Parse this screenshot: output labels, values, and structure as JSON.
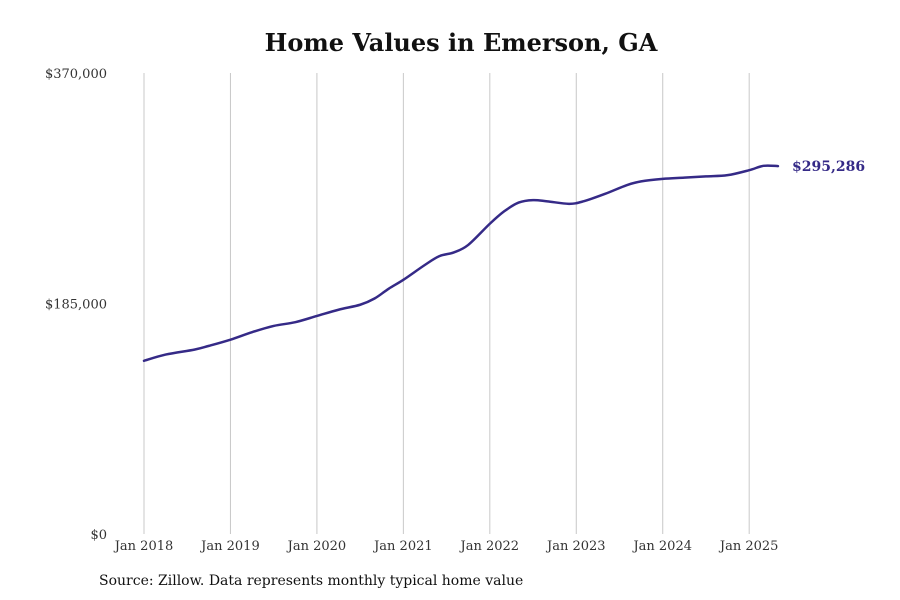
{
  "chart_data": {
    "type": "line",
    "title": "Home Values in Emerson, GA",
    "source": "Source: Zillow. Data represents monthly typical home value",
    "xlabel": "",
    "ylabel": "",
    "y_ticks": [
      "$370,000",
      "$185,000",
      "$0"
    ],
    "ylim": [
      0,
      370000
    ],
    "x_ticks": [
      "Jan 2018",
      "Jan 2019",
      "Jan 2020",
      "Jan 2021",
      "Jan 2022",
      "Jan 2023",
      "Jan 2024",
      "Jan 2025"
    ],
    "xlim": [
      "2018-01",
      "2025-05"
    ],
    "grid": "vertical",
    "line_color": "#352a87",
    "end_label": "$295,286",
    "series": [
      {
        "x": [
          "2018-01",
          "2018-04",
          "2018-08",
          "2018-10",
          "2019-01",
          "2019-04",
          "2019-07",
          "2019-10",
          "2020-01",
          "2020-04",
          "2020-07",
          "2020-09",
          "2020-11",
          "2021-01",
          "2021-04",
          "2021-06",
          "2021-08",
          "2021-10",
          "2022-01",
          "2022-03",
          "2022-05",
          "2022-07",
          "2022-09",
          "2022-12",
          "2023-02",
          "2023-05",
          "2023-08",
          "2023-10",
          "2024-01",
          "2024-04",
          "2024-07",
          "2024-10",
          "2025-01",
          "2025-03",
          "2025-05"
        ],
        "values": [
          139000,
          144000,
          148000,
          151000,
          156000,
          162000,
          167000,
          170000,
          175000,
          180000,
          184000,
          189000,
          197000,
          204000,
          216000,
          223000,
          226000,
          232000,
          249000,
          259000,
          266000,
          268000,
          267000,
          265000,
          267000,
          273000,
          280000,
          283000,
          285000,
          286000,
          287000,
          288000,
          292000,
          295500,
          295286
        ]
      }
    ]
  }
}
